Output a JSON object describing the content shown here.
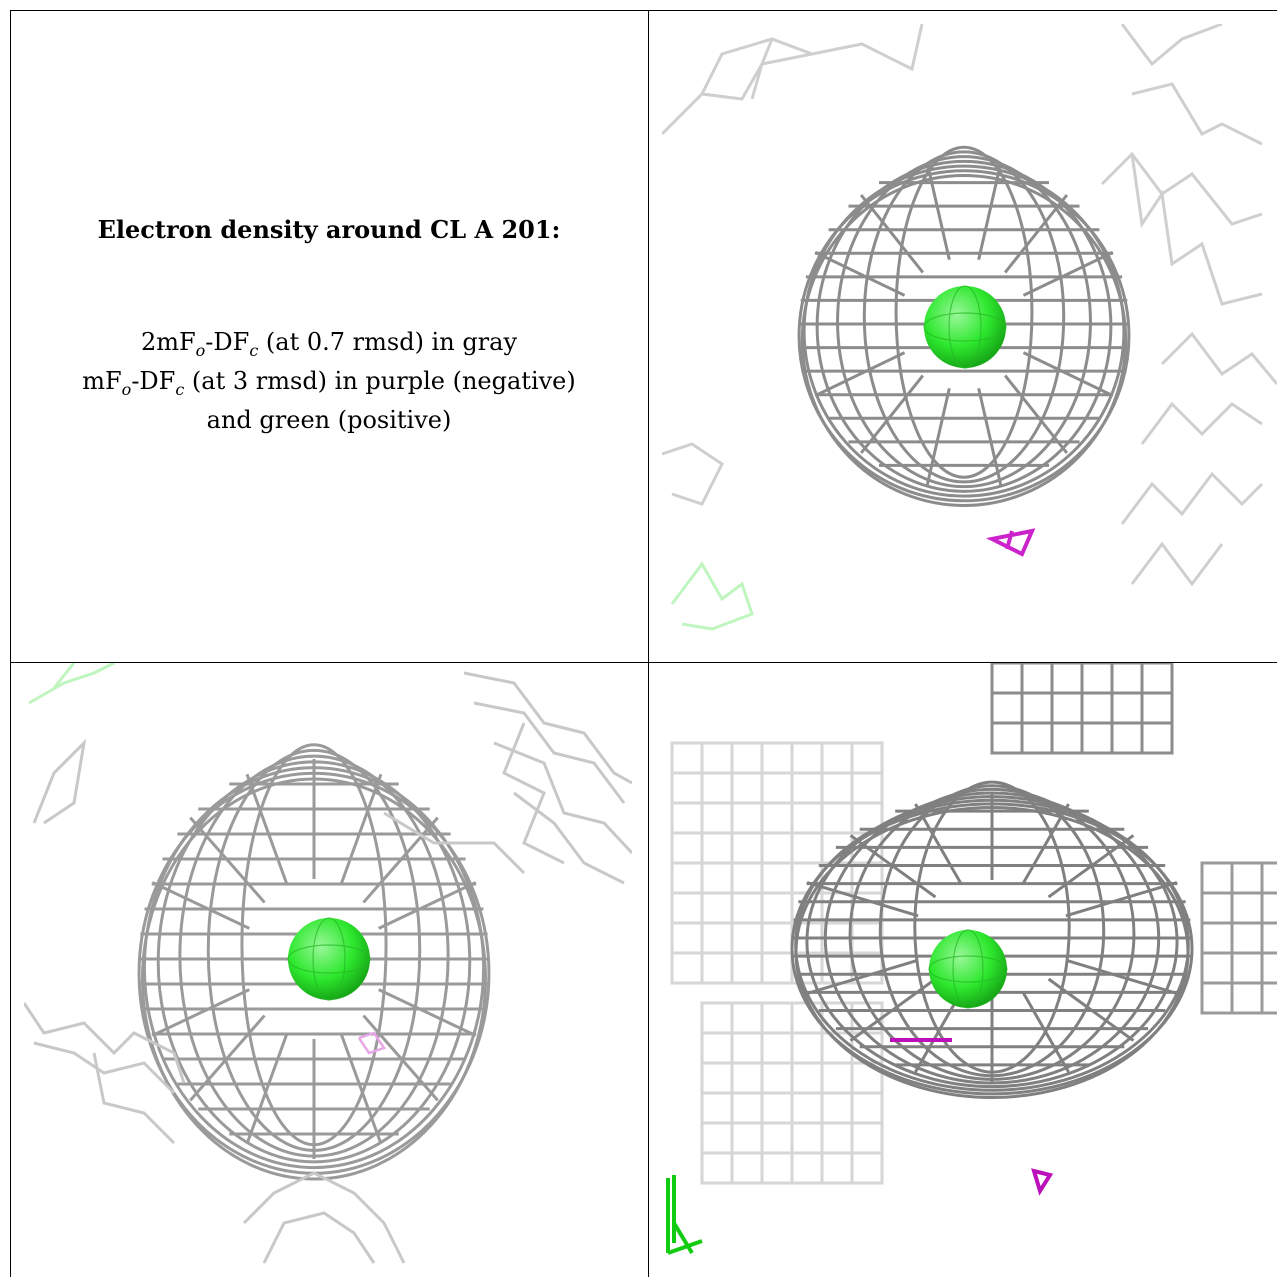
{
  "caption": {
    "title": "Electron density around CL A 201:",
    "line1_a": "2mF",
    "line1_b": "o",
    "line1_c": "-DF",
    "line1_d": "c",
    "line1_e": " (at 0.7 rmsd) in gray",
    "line2_a": "mF",
    "line2_b": "o",
    "line2_c": "-DF",
    "line2_d": "c",
    "line2_e": " (at 3 rmsd) in purple (negative)",
    "line3": "and green (positive)"
  },
  "colors": {
    "mesh_gray": "#8c8c8c",
    "mesh_light": "#cfcfcf",
    "positive_green": "#22dd22",
    "negative_purple": "#cc22cc",
    "atom_green": "#2ee82e"
  },
  "panels": [
    {
      "id": "top-right",
      "atom": "CL A 201"
    },
    {
      "id": "bottom-left",
      "atom": "CL A 201"
    },
    {
      "id": "bottom-right",
      "atom": "CL A 201"
    }
  ]
}
